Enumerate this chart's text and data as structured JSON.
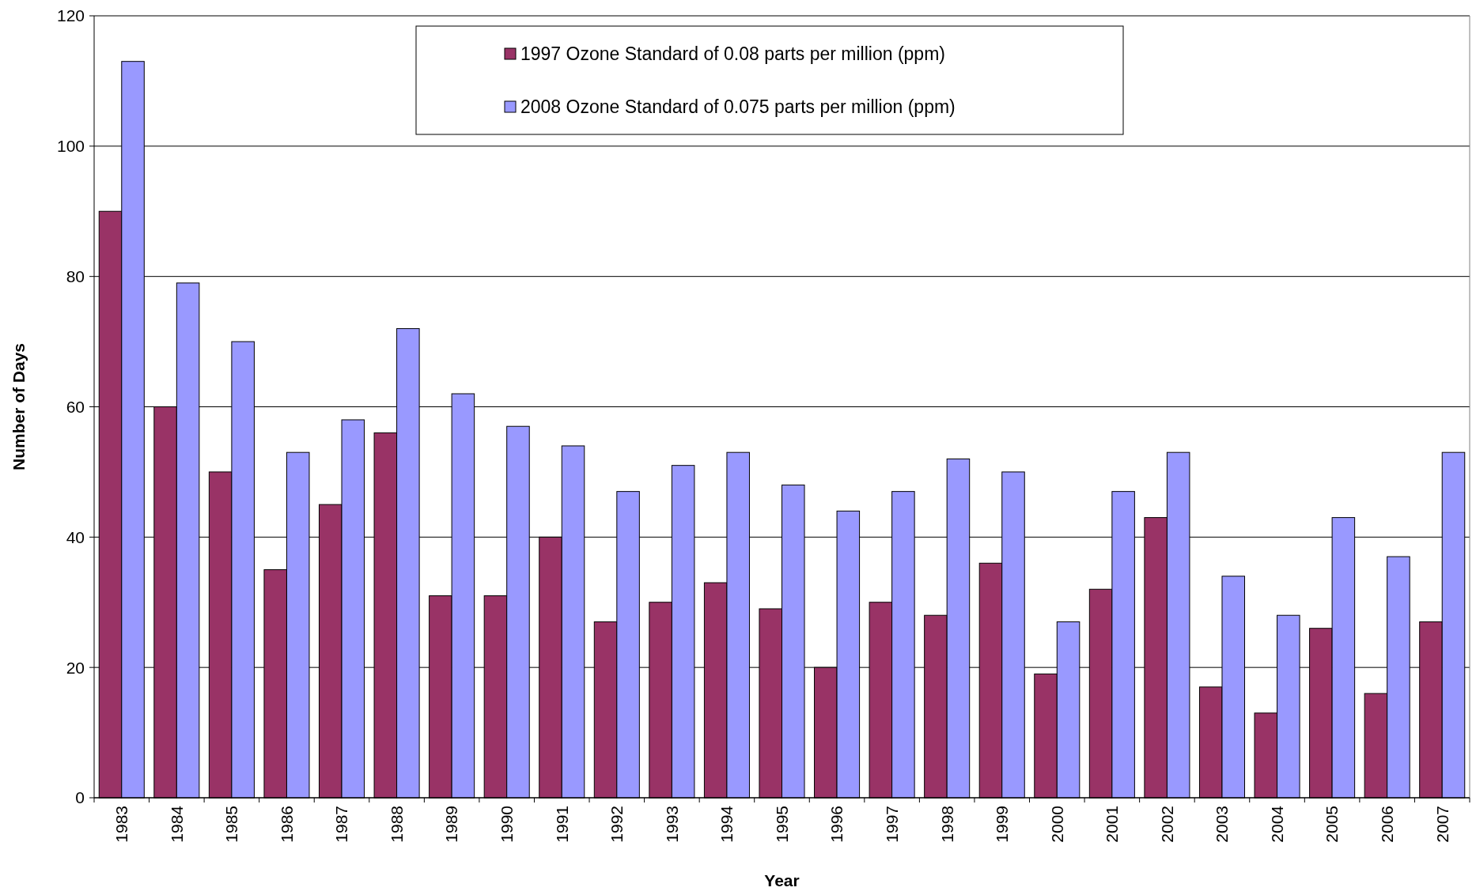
{
  "chart_data": {
    "type": "bar",
    "xlabel": "Year",
    "ylabel": "Number of Days",
    "categories": [
      "1983",
      "1984",
      "1985",
      "1986",
      "1987",
      "1988",
      "1989",
      "1990",
      "1991",
      "1992",
      "1993",
      "1994",
      "1995",
      "1996",
      "1997",
      "1998",
      "1999",
      "2000",
      "2001",
      "2002",
      "2003",
      "2004",
      "2005",
      "2006",
      "2007"
    ],
    "series": [
      {
        "name": "1997 Ozone Standard of 0.08 parts per million (ppm)",
        "color": "#993366",
        "values": [
          90,
          60,
          50,
          35,
          45,
          56,
          31,
          31,
          40,
          27,
          30,
          33,
          29,
          20,
          30,
          28,
          36,
          19,
          32,
          43,
          17,
          13,
          26,
          16,
          27
        ]
      },
      {
        "name": "2008 Ozone Standard of 0.075 parts per million (ppm)",
        "color": "#9999ff",
        "values": [
          113,
          79,
          70,
          53,
          58,
          72,
          62,
          57,
          54,
          47,
          51,
          53,
          48,
          44,
          47,
          52,
          50,
          27,
          47,
          53,
          34,
          28,
          43,
          37,
          53
        ]
      }
    ],
    "ylim": [
      0,
      120
    ],
    "yticks": [
      0,
      20,
      40,
      60,
      80,
      100,
      120
    ],
    "grid": "y",
    "legend": "top"
  }
}
